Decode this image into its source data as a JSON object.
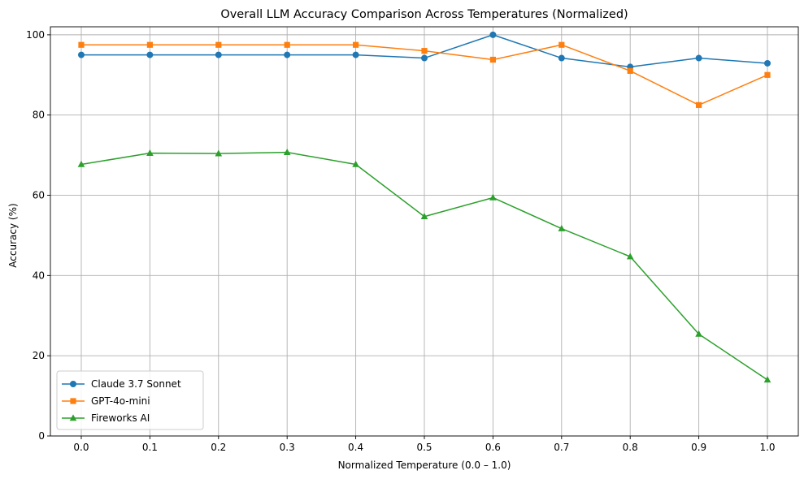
{
  "chart_data": {
    "type": "line",
    "title": "Overall LLM Accuracy Comparison Across Temperatures (Normalized)",
    "xlabel": "Normalized Temperature (0.0 – 1.0)",
    "ylabel": "Accuracy (%)",
    "x": [
      0.0,
      0.1,
      0.2,
      0.3,
      0.4,
      0.5,
      0.6,
      0.7,
      0.8,
      0.9,
      1.0
    ],
    "x_tick_labels": [
      "0.0",
      "0.1",
      "0.2",
      "0.3",
      "0.4",
      "0.5",
      "0.6",
      "0.7",
      "0.8",
      "0.9",
      "1.0"
    ],
    "y_ticks": [
      0,
      20,
      40,
      60,
      80,
      100
    ],
    "xlim": [
      -0.045,
      1.045
    ],
    "ylim": [
      0,
      102
    ],
    "grid": true,
    "legend_position": "lower-left",
    "series": [
      {
        "name": "Claude 3.7 Sonnet",
        "color": "#1f77b4",
        "marker": "circle",
        "values": [
          95.0,
          95.0,
          95.0,
          95.0,
          95.0,
          94.2,
          100.0,
          94.2,
          92.0,
          94.2,
          92.9
        ]
      },
      {
        "name": "GPT-4o-mini",
        "color": "#ff7f0e",
        "marker": "square",
        "values": [
          97.5,
          97.5,
          97.5,
          97.5,
          97.5,
          96.0,
          93.8,
          97.5,
          91.0,
          82.5,
          90.0
        ]
      },
      {
        "name": "Fireworks AI",
        "color": "#2ca02c",
        "marker": "triangle",
        "values": [
          67.7,
          70.5,
          70.4,
          70.7,
          67.7,
          54.7,
          59.4,
          51.7,
          44.7,
          25.4,
          14.0
        ]
      }
    ]
  }
}
